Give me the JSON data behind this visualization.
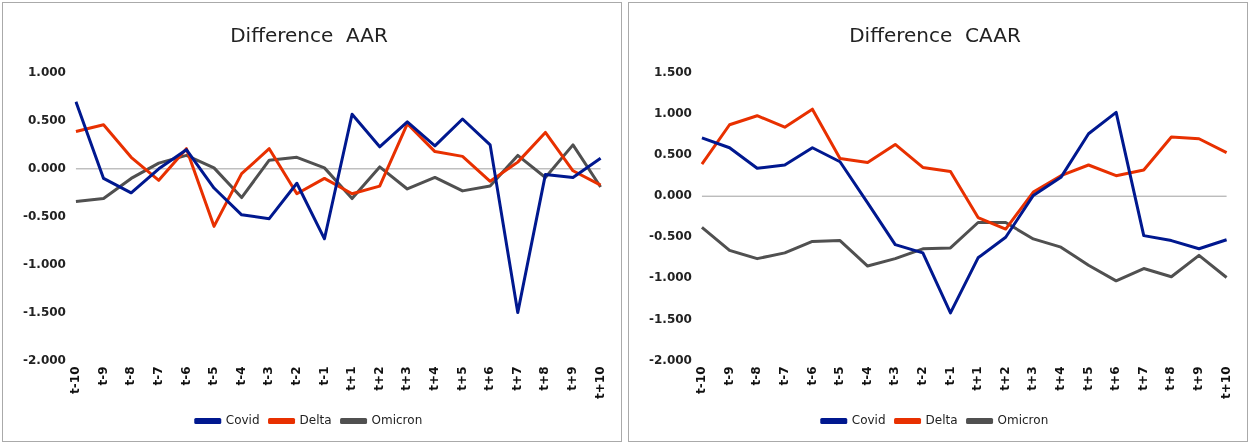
{
  "chart_data": [
    {
      "type": "line",
      "title": "Difference  AAR",
      "categories": [
        "t-10",
        "t-9",
        "t-8",
        "t-7",
        "t-6",
        "t-5",
        "t-4",
        "t-3",
        "t-2",
        "t-1",
        "t+1",
        "t+2",
        "t+3",
        "t+4",
        "t+5",
        "t+6",
        "t+7",
        "t+8",
        "t+9",
        "t+10"
      ],
      "series": [
        {
          "name": "Covid",
          "color": "#00188f",
          "values": [
            0.7,
            -0.1,
            -0.25,
            0.0,
            0.2,
            -0.2,
            -0.48,
            -0.52,
            -0.15,
            -0.73,
            0.57,
            0.23,
            0.49,
            0.24,
            0.52,
            0.25,
            -1.5,
            -0.06,
            -0.09,
            0.11
          ]
        },
        {
          "name": "Delta",
          "color": "#e83000",
          "values": [
            0.39,
            0.46,
            0.12,
            -0.12,
            0.21,
            -0.6,
            -0.05,
            0.21,
            -0.26,
            -0.1,
            -0.26,
            -0.18,
            0.47,
            0.18,
            0.13,
            -0.13,
            0.07,
            0.38,
            -0.02,
            -0.17
          ]
        },
        {
          "name": "Omicron",
          "color": "#505050",
          "values": [
            -0.34,
            -0.31,
            -0.1,
            0.06,
            0.14,
            0.01,
            -0.3,
            0.09,
            0.12,
            0.01,
            -0.31,
            0.02,
            -0.21,
            -0.09,
            -0.23,
            -0.18,
            0.14,
            -0.09,
            0.25,
            -0.19
          ]
        }
      ],
      "ylim": [
        -2,
        1
      ],
      "yticks": [
        {
          "value": -2,
          "label": "-2.000"
        },
        {
          "value": -1.5,
          "label": "-1.500"
        },
        {
          "value": -1,
          "label": "-1.000"
        },
        {
          "value": -0.5,
          "label": "-0.500"
        },
        {
          "value": 0,
          "label": "0.000"
        },
        {
          "value": 0.5,
          "label": "0.500"
        },
        {
          "value": 1,
          "label": "1.000"
        }
      ],
      "ref_lines": [
        {
          "axis": "y",
          "value": 0,
          "color": "#a0a0a0"
        }
      ],
      "grid": false,
      "legend": "bottom",
      "marker": "none",
      "line_style": "solid"
    },
    {
      "type": "line",
      "title": "Difference  CAAR",
      "categories": [
        "t-10",
        "t-9",
        "t-8",
        "t-7",
        "t-6",
        "t-5",
        "t-4",
        "t-3",
        "t-2",
        "t-1",
        "t+1",
        "t+2",
        "t+3",
        "t+4",
        "t+5",
        "t+6",
        "t+7",
        "t+8",
        "t+9",
        "t+10"
      ],
      "series": [
        {
          "name": "Covid",
          "color": "#00188f",
          "values": [
            0.71,
            0.59,
            0.34,
            0.38,
            0.59,
            0.42,
            -0.08,
            -0.59,
            -0.69,
            -1.42,
            -0.75,
            -0.5,
            0.01,
            0.23,
            0.76,
            1.02,
            -0.48,
            -0.54,
            -0.64,
            -0.53
          ]
        },
        {
          "name": "Delta",
          "color": "#e83000",
          "values": [
            0.39,
            0.87,
            0.98,
            0.84,
            1.06,
            0.46,
            0.41,
            0.63,
            0.35,
            0.3,
            -0.26,
            -0.4,
            0.05,
            0.25,
            0.38,
            0.25,
            0.32,
            0.72,
            0.7,
            0.53
          ]
        },
        {
          "name": "Omicron",
          "color": "#505050",
          "values": [
            -0.38,
            -0.66,
            -0.76,
            -0.69,
            -0.55,
            -0.54,
            -0.85,
            -0.76,
            -0.64,
            -0.63,
            -0.32,
            -0.32,
            -0.52,
            -0.62,
            -0.84,
            -1.03,
            -0.88,
            -0.98,
            -0.72,
            -0.99
          ]
        }
      ],
      "ylim": [
        -2,
        1.5
      ],
      "yticks": [
        {
          "value": -2,
          "label": "-2.000"
        },
        {
          "value": -1.5,
          "label": "-1.500"
        },
        {
          "value": -1,
          "label": "-1.000"
        },
        {
          "value": -0.5,
          "label": "-0.500"
        },
        {
          "value": 0,
          "label": "0.000"
        },
        {
          "value": 0.5,
          "label": "0.500"
        },
        {
          "value": 1,
          "label": "1.000"
        },
        {
          "value": 1.5,
          "label": "1.500"
        }
      ],
      "ref_lines": [
        {
          "axis": "y",
          "value": 0,
          "color": "#a0a0a0"
        }
      ],
      "grid": false,
      "legend": "bottom",
      "marker": "none",
      "line_style": "solid"
    }
  ]
}
